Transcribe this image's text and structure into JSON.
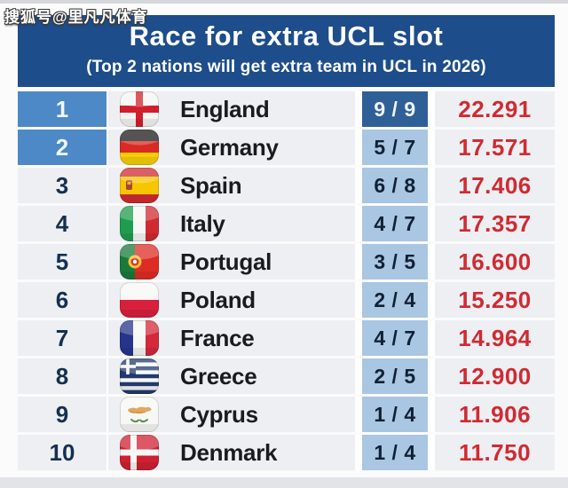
{
  "watermark": "搜狐号@里凡凡体育",
  "header": {
    "title": "Race for extra UCL slot",
    "subtitle": "(Top 2 nations will get extra team in UCL in 2026)"
  },
  "chart_data": {
    "type": "table",
    "title": "Race for extra UCL slot",
    "subtitle": "(Top 2 nations will get extra team in UCL in 2026)",
    "columns": [
      "rank",
      "flag",
      "nation",
      "matches_played",
      "coefficient_points"
    ],
    "note_top2_highlighted": true,
    "rows": [
      {
        "rank": "1",
        "nation": "England",
        "flag": "england",
        "games": "9 / 9",
        "points": "22.291",
        "rank_highlight": true,
        "games_dark": true
      },
      {
        "rank": "2",
        "nation": "Germany",
        "flag": "germany",
        "games": "5 / 7",
        "points": "17.571",
        "rank_highlight": true,
        "games_dark": false
      },
      {
        "rank": "3",
        "nation": "Spain",
        "flag": "spain",
        "games": "6 / 8",
        "points": "17.406",
        "rank_highlight": false,
        "games_dark": false
      },
      {
        "rank": "4",
        "nation": "Italy",
        "flag": "italy",
        "games": "4 / 7",
        "points": "17.357",
        "rank_highlight": false,
        "games_dark": false
      },
      {
        "rank": "5",
        "nation": "Portugal",
        "flag": "portugal",
        "games": "3 / 5",
        "points": "16.600",
        "rank_highlight": false,
        "games_dark": false
      },
      {
        "rank": "6",
        "nation": "Poland",
        "flag": "poland",
        "games": "2 / 4",
        "points": "15.250",
        "rank_highlight": false,
        "games_dark": false
      },
      {
        "rank": "7",
        "nation": "France",
        "flag": "france",
        "games": "4 / 7",
        "points": "14.964",
        "rank_highlight": false,
        "games_dark": false
      },
      {
        "rank": "8",
        "nation": "Greece",
        "flag": "greece",
        "games": "2 / 5",
        "points": "12.900",
        "rank_highlight": false,
        "games_dark": false
      },
      {
        "rank": "9",
        "nation": "Cyprus",
        "flag": "cyprus",
        "games": "1 / 4",
        "points": "11.906",
        "rank_highlight": false,
        "games_dark": false
      },
      {
        "rank": "10",
        "nation": "Denmark",
        "flag": "denmark",
        "games": "1 / 4",
        "points": "11.750",
        "rank_highlight": false,
        "games_dark": false
      }
    ]
  },
  "colors": {
    "header_bg": "#1d4d8a",
    "rank_highlight": "#4d89c6",
    "games_light": "#a9c6e2",
    "games_dark": "#2f5f97",
    "points_red": "#cf2b31",
    "row_bg": "#edeff3",
    "navy_text": "#15304f"
  }
}
